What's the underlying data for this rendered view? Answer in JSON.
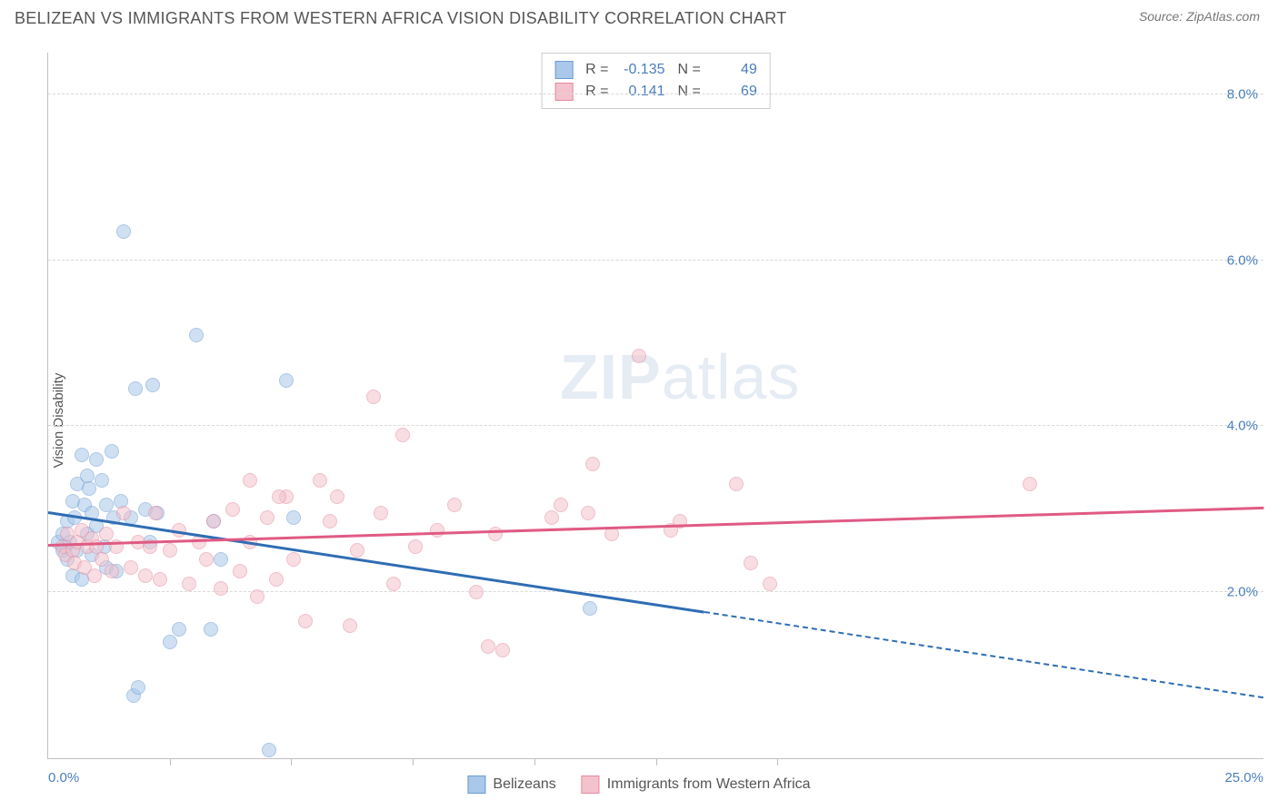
{
  "title": "BELIZEAN VS IMMIGRANTS FROM WESTERN AFRICA VISION DISABILITY CORRELATION CHART",
  "source": "Source: ZipAtlas.com",
  "ylabel": "Vision Disability",
  "watermark_a": "ZIP",
  "watermark_b": "atlas",
  "chart": {
    "type": "scatter",
    "xlim": [
      0,
      25
    ],
    "ylim": [
      0,
      8.5
    ],
    "x_tick_positions": [
      2.5,
      5,
      7.5,
      10,
      12.5,
      15
    ],
    "x_left_label": "0.0%",
    "x_right_label": "25.0%",
    "y_gridlines": [
      2,
      4,
      6,
      8
    ],
    "y_tick_labels": [
      "2.0%",
      "4.0%",
      "6.0%",
      "8.0%"
    ],
    "background_color": "#ffffff",
    "grid_color": "#d8d8d8",
    "axis_color": "#bfbfbf",
    "tick_label_color": "#4a7ebb",
    "point_radius": 8,
    "point_opacity": 0.55,
    "series": [
      {
        "name": "Belizeans",
        "color_fill": "#a9c8ea",
        "color_stroke": "#6a9bd1",
        "r": "-0.135",
        "n": "49",
        "trend": {
          "x1": 0,
          "y1": 2.95,
          "x2": 13.5,
          "y2": 1.75,
          "color": "#2f6db3",
          "width": 2.5,
          "extend": {
            "x2": 25,
            "y2": 0.72,
            "dashed": true
          }
        },
        "points": [
          [
            0.2,
            2.6
          ],
          [
            0.3,
            2.5
          ],
          [
            0.3,
            2.7
          ],
          [
            0.35,
            2.55
          ],
          [
            0.4,
            2.85
          ],
          [
            0.4,
            2.4
          ],
          [
            0.45,
            2.6
          ],
          [
            0.5,
            3.1
          ],
          [
            0.5,
            2.2
          ],
          [
            0.55,
            2.9
          ],
          [
            0.6,
            3.3
          ],
          [
            0.6,
            2.5
          ],
          [
            0.7,
            3.65
          ],
          [
            0.7,
            2.15
          ],
          [
            0.75,
            3.05
          ],
          [
            0.8,
            3.4
          ],
          [
            0.8,
            2.7
          ],
          [
            0.85,
            3.25
          ],
          [
            0.9,
            2.95
          ],
          [
            0.9,
            2.45
          ],
          [
            1.0,
            3.6
          ],
          [
            1.0,
            2.8
          ],
          [
            1.1,
            3.35
          ],
          [
            1.15,
            2.55
          ],
          [
            1.2,
            3.05
          ],
          [
            1.2,
            2.3
          ],
          [
            1.3,
            3.7
          ],
          [
            1.35,
            2.9
          ],
          [
            1.4,
            2.25
          ],
          [
            1.5,
            3.1
          ],
          [
            1.55,
            6.35
          ],
          [
            1.7,
            2.9
          ],
          [
            1.75,
            0.75
          ],
          [
            1.8,
            4.45
          ],
          [
            2.0,
            3.0
          ],
          [
            2.1,
            2.6
          ],
          [
            2.15,
            4.5
          ],
          [
            2.25,
            2.95
          ],
          [
            2.5,
            1.4
          ],
          [
            2.7,
            1.55
          ],
          [
            3.05,
            5.1
          ],
          [
            3.35,
            1.55
          ],
          [
            3.4,
            2.85
          ],
          [
            3.55,
            2.4
          ],
          [
            4.55,
            0.1
          ],
          [
            4.9,
            4.55
          ],
          [
            5.05,
            2.9
          ],
          [
            11.15,
            1.8
          ],
          [
            1.85,
            0.85
          ]
        ]
      },
      {
        "name": "Immigrants from Western Africa",
        "color_fill": "#f4c2cc",
        "color_stroke": "#e48aa0",
        "r": "0.141",
        "n": "69",
        "trend": {
          "x1": 0,
          "y1": 2.55,
          "x2": 25,
          "y2": 3.0,
          "color": "#e05a84",
          "width": 2.5
        },
        "points": [
          [
            0.3,
            2.55
          ],
          [
            0.35,
            2.45
          ],
          [
            0.4,
            2.7
          ],
          [
            0.5,
            2.5
          ],
          [
            0.55,
            2.35
          ],
          [
            0.6,
            2.6
          ],
          [
            0.7,
            2.75
          ],
          [
            0.75,
            2.3
          ],
          [
            0.8,
            2.55
          ],
          [
            0.9,
            2.65
          ],
          [
            0.95,
            2.2
          ],
          [
            1.0,
            2.55
          ],
          [
            1.1,
            2.4
          ],
          [
            1.2,
            2.7
          ],
          [
            1.3,
            2.25
          ],
          [
            1.4,
            2.55
          ],
          [
            1.55,
            2.95
          ],
          [
            1.7,
            2.3
          ],
          [
            1.85,
            2.6
          ],
          [
            2.0,
            2.2
          ],
          [
            2.1,
            2.55
          ],
          [
            2.2,
            2.95
          ],
          [
            2.3,
            2.15
          ],
          [
            2.5,
            2.5
          ],
          [
            2.7,
            2.75
          ],
          [
            2.9,
            2.1
          ],
          [
            3.1,
            2.6
          ],
          [
            3.25,
            2.4
          ],
          [
            3.4,
            2.85
          ],
          [
            3.55,
            2.05
          ],
          [
            3.8,
            3.0
          ],
          [
            3.95,
            2.25
          ],
          [
            4.15,
            3.35
          ],
          [
            4.15,
            2.6
          ],
          [
            4.3,
            1.95
          ],
          [
            4.5,
            2.9
          ],
          [
            4.7,
            2.15
          ],
          [
            4.9,
            3.15
          ],
          [
            5.05,
            2.4
          ],
          [
            5.3,
            1.65
          ],
          [
            5.6,
            3.35
          ],
          [
            5.8,
            2.85
          ],
          [
            5.95,
            3.15
          ],
          [
            6.2,
            1.6
          ],
          [
            6.35,
            2.5
          ],
          [
            6.7,
            4.35
          ],
          [
            6.85,
            2.95
          ],
          [
            7.1,
            2.1
          ],
          [
            7.3,
            3.9
          ],
          [
            7.55,
            2.55
          ],
          [
            8.0,
            2.75
          ],
          [
            8.35,
            3.05
          ],
          [
            8.8,
            2.0
          ],
          [
            9.05,
            1.35
          ],
          [
            9.2,
            2.7
          ],
          [
            9.35,
            1.3
          ],
          [
            10.35,
            2.9
          ],
          [
            10.55,
            3.05
          ],
          [
            11.1,
            2.95
          ],
          [
            11.2,
            3.55
          ],
          [
            11.6,
            2.7
          ],
          [
            12.15,
            4.85
          ],
          [
            12.8,
            2.75
          ],
          [
            13.0,
            2.85
          ],
          [
            14.15,
            3.3
          ],
          [
            14.45,
            2.35
          ],
          [
            14.85,
            2.1
          ],
          [
            20.2,
            3.3
          ],
          [
            4.75,
            3.15
          ]
        ]
      }
    ]
  },
  "legend_labels": [
    "Belizeans",
    "Immigrants from Western Africa"
  ],
  "stats_labels": {
    "r": "R =",
    "n": "N ="
  }
}
